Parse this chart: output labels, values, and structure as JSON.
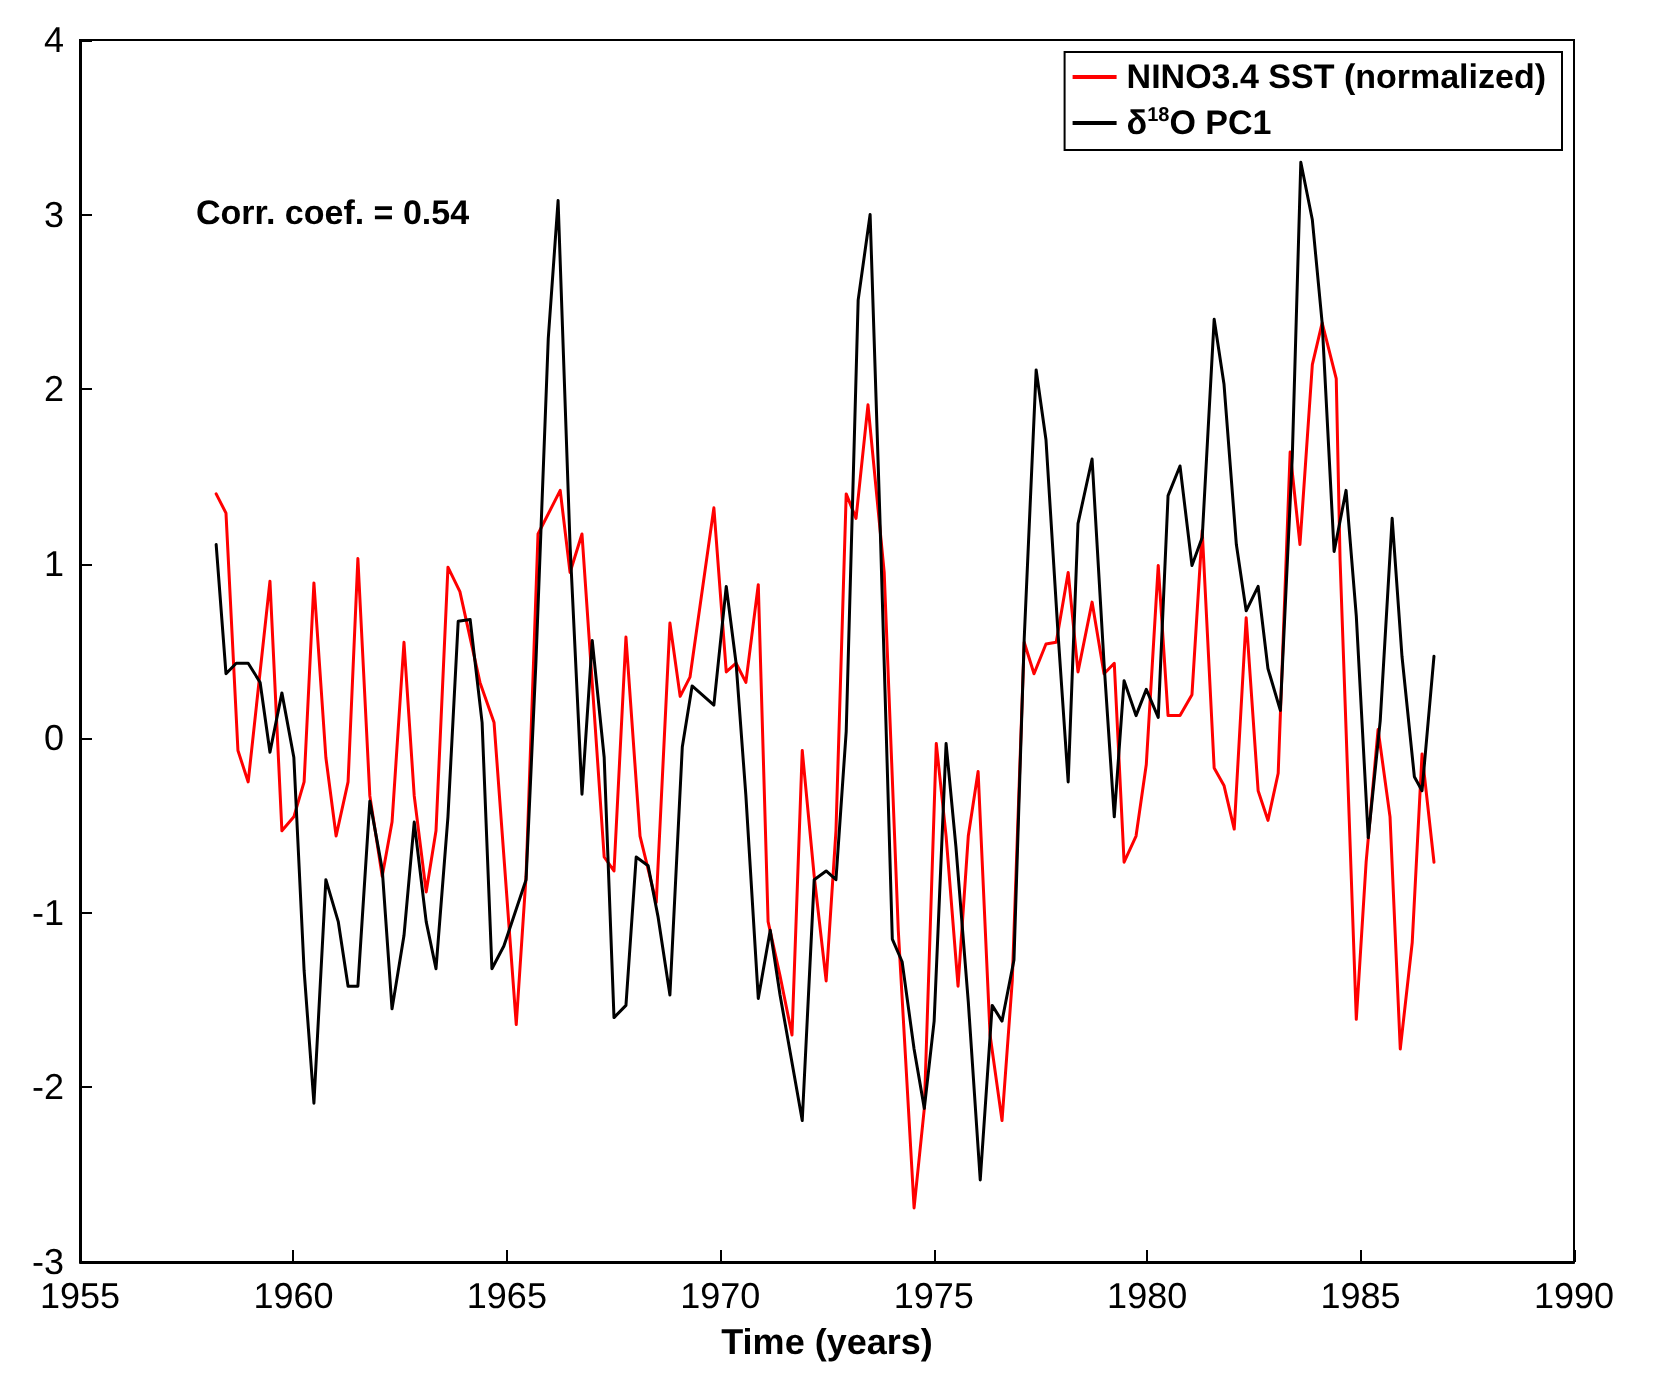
{
  "chart_data": {
    "type": "line",
    "xlabel": "Time (years)",
    "xlim": [
      1955,
      1990
    ],
    "xticks": [
      1955,
      1960,
      1965,
      1970,
      1975,
      1980,
      1985,
      1990
    ],
    "ylim": [
      -3,
      4
    ],
    "yticks": [
      -3,
      -2,
      -1,
      0,
      1,
      2,
      3,
      4
    ],
    "grid": false,
    "legend": "top right",
    "marker": "none",
    "line_style": "solid",
    "annotations": [
      "Corr. coef. = 0.54"
    ],
    "series": [
      {
        "name": "NINO3.4 SST (normalized)",
        "color": "#ff0000",
        "x": [
          1958.19,
          1958.42,
          1958.7,
          1958.94,
          1959.45,
          1959.73,
          1960.01,
          1960.25,
          1960.48,
          1960.76,
          1961.0,
          1961.28,
          1961.51,
          1961.79,
          1962.08,
          1962.31,
          1962.59,
          1962.83,
          1963.11,
          1963.34,
          1963.62,
          1963.9,
          1964.37,
          1964.7,
          1965.22,
          1965.45,
          1965.73,
          1966.25,
          1966.48,
          1966.76,
          1967.28,
          1967.51,
          1967.79,
          1968.12,
          1968.5,
          1968.82,
          1969.06,
          1969.29,
          1969.85,
          1970.14,
          1970.37,
          1970.6,
          1970.89,
          1971.12,
          1971.4,
          1971.68,
          1971.92,
          1972.2,
          1972.48,
          1972.71,
          1972.95,
          1973.18,
          1973.46,
          1973.84,
          1974.17,
          1974.54,
          1974.78,
          1975.06,
          1975.29,
          1975.57,
          1975.81,
          1976.04,
          1976.32,
          1976.6,
          1976.84,
          1977.12,
          1977.35,
          1977.63,
          1977.87,
          1978.15,
          1978.38,
          1978.71,
          1978.99,
          1979.23,
          1979.46,
          1979.74,
          1979.98,
          1980.26,
          1980.49,
          1980.77,
          1981.05,
          1981.29,
          1981.57,
          1981.8,
          1982.04,
          1982.32,
          1982.6,
          1982.83,
          1983.07,
          1983.35,
          1983.58,
          1983.87,
          1984.1,
          1984.43,
          1984.52,
          1984.9,
          1985.13,
          1985.41,
          1985.69,
          1985.93,
          1986.21,
          1986.44,
          1986.72
        ],
        "values": [
          1.4,
          1.29,
          -0.07,
          -0.25,
          0.9,
          -0.53,
          -0.45,
          -0.25,
          0.89,
          -0.11,
          -0.56,
          -0.25,
          1.03,
          -0.33,
          -0.79,
          -0.48,
          0.55,
          -0.33,
          -0.88,
          -0.53,
          0.98,
          0.84,
          0.32,
          0.09,
          -1.64,
          -0.79,
          1.17,
          1.42,
          0.95,
          1.17,
          -0.68,
          -0.76,
          0.58,
          -0.56,
          -0.94,
          0.66,
          0.24,
          0.35,
          1.32,
          0.38,
          0.43,
          0.32,
          0.88,
          -1.05,
          -1.36,
          -1.7,
          -0.07,
          -0.79,
          -1.39,
          -0.53,
          1.4,
          1.26,
          1.91,
          0.95,
          -1.1,
          -2.69,
          -2.12,
          -0.03,
          -0.56,
          -1.42,
          -0.56,
          -0.19,
          -1.7,
          -2.19,
          -1.39,
          0.55,
          0.37,
          0.54,
          0.55,
          0.95,
          0.38,
          0.78,
          0.37,
          0.43,
          -0.71,
          -0.56,
          -0.15,
          0.99,
          0.13,
          0.13,
          0.25,
          1.19,
          -0.17,
          -0.27,
          -0.52,
          0.69,
          -0.3,
          -0.47,
          -0.2,
          1.64,
          1.11,
          2.14,
          2.38,
          2.06,
          1.02,
          -1.61,
          -0.71,
          0.05,
          -0.45,
          -1.78,
          -1.17,
          -0.09,
          -0.71
        ]
      },
      {
        "name": "δ$^{18}$O PC1",
        "color": "#000000",
        "x": [
          1958.19,
          1958.42,
          1958.66,
          1958.94,
          1959.22,
          1959.45,
          1959.73,
          1960.01,
          1960.25,
          1960.48,
          1960.76,
          1961.05,
          1961.28,
          1961.51,
          1961.79,
          1962.08,
          1962.31,
          1962.59,
          1962.83,
          1963.11,
          1963.34,
          1963.62,
          1963.86,
          1964.14,
          1964.42,
          1964.65,
          1964.93,
          1965.45,
          1965.68,
          1965.97,
          1966.2,
          1966.48,
          1966.76,
          1967.0,
          1967.28,
          1967.51,
          1967.79,
          1968.03,
          1968.31,
          1968.54,
          1968.82,
          1969.11,
          1969.34,
          1969.85,
          1970.14,
          1970.37,
          1970.6,
          1970.89,
          1971.17,
          1971.4,
          1971.92,
          1972.2,
          1972.48,
          1972.71,
          1972.95,
          1973.23,
          1973.51,
          1973.74,
          1974.03,
          1974.26,
          1974.54,
          1974.78,
          1975.01,
          1975.29,
          1975.52,
          1975.81,
          1976.09,
          1976.37,
          1976.6,
          1976.88,
          1977.12,
          1977.4,
          1977.63,
          1977.91,
          1978.15,
          1978.38,
          1978.71,
          1978.99,
          1979.23,
          1979.46,
          1979.74,
          1979.98,
          1980.26,
          1980.49,
          1980.77,
          1981.05,
          1981.29,
          1981.57,
          1981.8,
          1982.09,
          1982.32,
          1982.6,
          1982.83,
          1983.12,
          1983.4,
          1983.6,
          1983.87,
          1984.1,
          1984.38,
          1984.66,
          1984.9,
          1985.18,
          1985.46,
          1985.74,
          1985.97,
          1986.26,
          1986.44,
          1986.72
        ],
        "values": [
          1.11,
          0.37,
          0.43,
          0.43,
          0.32,
          -0.08,
          0.26,
          -0.11,
          -1.33,
          -2.09,
          -0.81,
          -1.05,
          -1.42,
          -1.42,
          -0.36,
          -0.75,
          -1.55,
          -1.13,
          -0.48,
          -1.05,
          -1.32,
          -0.45,
          0.67,
          0.68,
          0.09,
          -1.32,
          -1.19,
          -0.81,
          0.43,
          2.29,
          3.08,
          1.11,
          -0.32,
          0.56,
          -0.11,
          -1.6,
          -1.53,
          -0.68,
          -0.73,
          -1.02,
          -1.47,
          -0.05,
          0.3,
          0.19,
          0.87,
          0.43,
          -0.33,
          -1.49,
          -1.1,
          -1.47,
          -2.19,
          -0.81,
          -0.76,
          -0.81,
          0.04,
          2.51,
          3.0,
          1.26,
          -1.15,
          -1.28,
          -1.78,
          -2.12,
          -1.62,
          -0.03,
          -0.62,
          -1.51,
          -2.53,
          -1.53,
          -1.62,
          -1.27,
          0.57,
          2.11,
          1.71,
          0.61,
          -0.25,
          1.23,
          1.6,
          0.43,
          -0.45,
          0.33,
          0.13,
          0.28,
          0.12,
          1.39,
          1.56,
          0.99,
          1.15,
          2.4,
          2.03,
          1.11,
          0.73,
          0.87,
          0.4,
          0.16,
          1.61,
          3.3,
          2.97,
          2.38,
          1.07,
          1.42,
          0.7,
          -0.57,
          0.1,
          1.26,
          0.47,
          -0.22,
          -0.3,
          0.47
        ]
      }
    ]
  }
}
